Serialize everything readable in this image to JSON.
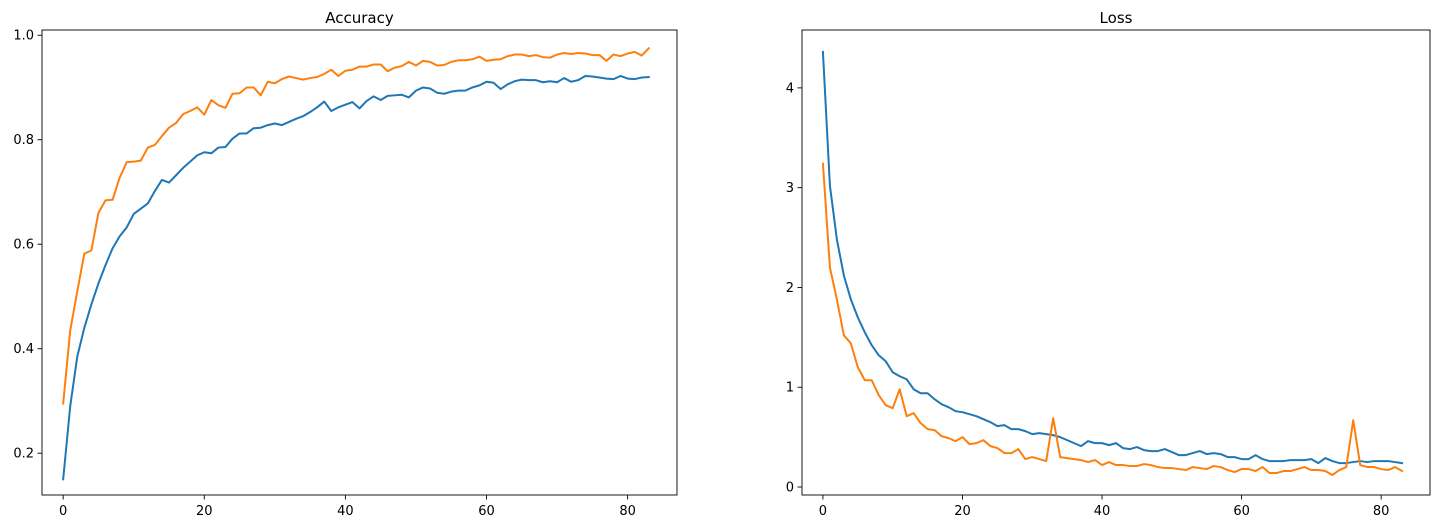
{
  "chart_data": [
    {
      "type": "line",
      "title": "Accuracy",
      "xlabel": "",
      "ylabel": "",
      "xlim": [
        -3,
        87
      ],
      "ylim": [
        0.12,
        1.01
      ],
      "xticks": [
        0,
        20,
        40,
        60,
        80
      ],
      "xtick_labels": [
        "0",
        "20",
        "40",
        "60",
        "80"
      ],
      "yticks": [
        0.2,
        0.4,
        0.6,
        0.8,
        1.0
      ],
      "ytick_labels": [
        "0.2",
        "0.4",
        "0.6",
        "0.8",
        "1.0"
      ],
      "grid": false,
      "x": [
        0,
        1,
        2,
        3,
        4,
        5,
        6,
        7,
        8,
        9,
        10,
        11,
        12,
        13,
        14,
        15,
        16,
        17,
        18,
        19,
        20,
        21,
        22,
        23,
        24,
        25,
        26,
        27,
        28,
        29,
        30,
        31,
        32,
        33,
        34,
        35,
        36,
        37,
        38,
        39,
        40,
        41,
        42,
        43,
        44,
        45,
        46,
        47,
        48,
        49,
        50,
        51,
        52,
        53,
        54,
        55,
        56,
        57,
        58,
        59,
        60,
        61,
        62,
        63,
        64,
        65,
        66,
        67,
        68,
        69,
        70,
        71,
        72,
        73,
        74,
        75,
        76,
        77,
        78,
        79,
        80,
        81,
        82,
        83
      ],
      "series": [
        {
          "color": "#1f77b4",
          "values": [
            0.15,
            0.29,
            0.385,
            0.44,
            0.485,
            0.525,
            0.56,
            0.592,
            0.615,
            0.632,
            0.658,
            0.668,
            0.678,
            0.702,
            0.723,
            0.718,
            0.732,
            0.746,
            0.758,
            0.77,
            0.776,
            0.774,
            0.785,
            0.786,
            0.802,
            0.812,
            0.812,
            0.822,
            0.823,
            0.828,
            0.831,
            0.828,
            0.834,
            0.84,
            0.845,
            0.853,
            0.862,
            0.873,
            0.855,
            0.862,
            0.867,
            0.872,
            0.86,
            0.874,
            0.883,
            0.876,
            0.884,
            0.885,
            0.886,
            0.881,
            0.894,
            0.9,
            0.898,
            0.89,
            0.888,
            0.892,
            0.894,
            0.894,
            0.9,
            0.904,
            0.911,
            0.909,
            0.897,
            0.906,
            0.912,
            0.915,
            0.914,
            0.914,
            0.91,
            0.912,
            0.91,
            0.918,
            0.911,
            0.914,
            0.922,
            0.921,
            0.919,
            0.917,
            0.916,
            0.922,
            0.917,
            0.916,
            0.919,
            0.92
          ]
        },
        {
          "color": "#ff7f0e",
          "values": [
            0.295,
            0.435,
            0.51,
            0.582,
            0.588,
            0.66,
            0.684,
            0.685,
            0.727,
            0.757,
            0.758,
            0.76,
            0.785,
            0.79,
            0.807,
            0.823,
            0.832,
            0.849,
            0.855,
            0.862,
            0.848,
            0.876,
            0.866,
            0.861,
            0.888,
            0.889,
            0.9,
            0.9,
            0.885,
            0.911,
            0.908,
            0.916,
            0.921,
            0.918,
            0.915,
            0.918,
            0.92,
            0.926,
            0.934,
            0.922,
            0.932,
            0.934,
            0.94,
            0.94,
            0.944,
            0.944,
            0.931,
            0.938,
            0.941,
            0.949,
            0.942,
            0.951,
            0.949,
            0.942,
            0.943,
            0.949,
            0.952,
            0.952,
            0.954,
            0.959,
            0.951,
            0.953,
            0.954,
            0.96,
            0.963,
            0.963,
            0.96,
            0.962,
            0.958,
            0.957,
            0.963,
            0.966,
            0.964,
            0.966,
            0.965,
            0.962,
            0.962,
            0.951,
            0.963,
            0.96,
            0.965,
            0.968,
            0.961,
            0.975
          ]
        }
      ]
    },
    {
      "type": "line",
      "title": "Loss",
      "xlabel": "",
      "ylabel": "",
      "xlim": [
        -3,
        87
      ],
      "ylim": [
        -0.08,
        4.58
      ],
      "xticks": [
        0,
        20,
        40,
        60,
        80
      ],
      "xtick_labels": [
        "0",
        "20",
        "40",
        "60",
        "80"
      ],
      "yticks": [
        0,
        1,
        2,
        3,
        4
      ],
      "ytick_labels": [
        "0",
        "1",
        "2",
        "3",
        "4"
      ],
      "grid": false,
      "x": [
        0,
        1,
        2,
        3,
        4,
        5,
        6,
        7,
        8,
        9,
        10,
        11,
        12,
        13,
        14,
        15,
        16,
        17,
        18,
        19,
        20,
        21,
        22,
        23,
        24,
        25,
        26,
        27,
        28,
        29,
        30,
        31,
        32,
        33,
        34,
        35,
        36,
        37,
        38,
        39,
        40,
        41,
        42,
        43,
        44,
        45,
        46,
        47,
        48,
        49,
        50,
        51,
        52,
        53,
        54,
        55,
        56,
        57,
        58,
        59,
        60,
        61,
        62,
        63,
        64,
        65,
        66,
        67,
        68,
        69,
        70,
        71,
        72,
        73,
        74,
        75,
        76,
        77,
        78,
        79,
        80,
        81,
        82,
        83
      ],
      "series": [
        {
          "color": "#1f77b4",
          "values": [
            4.36,
            3.02,
            2.48,
            2.12,
            1.88,
            1.7,
            1.55,
            1.42,
            1.32,
            1.26,
            1.15,
            1.11,
            1.08,
            0.98,
            0.94,
            0.94,
            0.88,
            0.83,
            0.8,
            0.76,
            0.75,
            0.73,
            0.71,
            0.68,
            0.65,
            0.61,
            0.62,
            0.58,
            0.58,
            0.56,
            0.53,
            0.54,
            0.53,
            0.52,
            0.5,
            0.47,
            0.44,
            0.41,
            0.46,
            0.44,
            0.44,
            0.42,
            0.44,
            0.39,
            0.38,
            0.4,
            0.37,
            0.36,
            0.36,
            0.38,
            0.35,
            0.32,
            0.32,
            0.34,
            0.36,
            0.33,
            0.34,
            0.33,
            0.3,
            0.3,
            0.28,
            0.28,
            0.32,
            0.28,
            0.26,
            0.26,
            0.26,
            0.27,
            0.27,
            0.27,
            0.28,
            0.24,
            0.29,
            0.26,
            0.24,
            0.24,
            0.25,
            0.26,
            0.25,
            0.26,
            0.26,
            0.26,
            0.25,
            0.24
          ]
        },
        {
          "color": "#ff7f0e",
          "values": [
            3.24,
            2.2,
            1.88,
            1.52,
            1.44,
            1.2,
            1.07,
            1.07,
            0.92,
            0.82,
            0.79,
            0.98,
            0.71,
            0.74,
            0.64,
            0.58,
            0.57,
            0.51,
            0.49,
            0.46,
            0.5,
            0.43,
            0.44,
            0.47,
            0.41,
            0.39,
            0.34,
            0.34,
            0.38,
            0.28,
            0.3,
            0.28,
            0.26,
            0.69,
            0.3,
            0.29,
            0.28,
            0.27,
            0.25,
            0.27,
            0.22,
            0.25,
            0.22,
            0.22,
            0.21,
            0.21,
            0.23,
            0.22,
            0.2,
            0.19,
            0.19,
            0.18,
            0.17,
            0.2,
            0.19,
            0.18,
            0.21,
            0.2,
            0.17,
            0.15,
            0.18,
            0.18,
            0.16,
            0.2,
            0.14,
            0.14,
            0.16,
            0.16,
            0.18,
            0.2,
            0.17,
            0.17,
            0.16,
            0.12,
            0.17,
            0.2,
            0.67,
            0.22,
            0.2,
            0.2,
            0.18,
            0.17,
            0.2,
            0.16
          ]
        }
      ]
    }
  ]
}
